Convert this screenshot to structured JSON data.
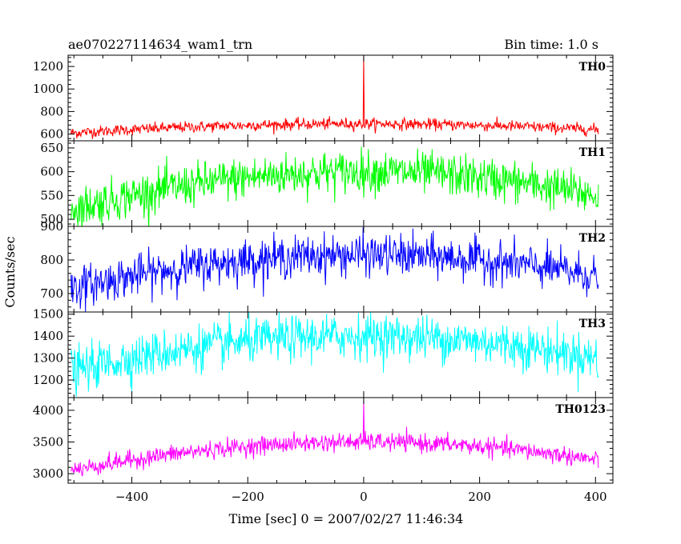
{
  "header": {
    "left_title": "ae070227114634_wam1_trn",
    "right_title": "Bin time: 1.0 s"
  },
  "chart_data": {
    "type": "line",
    "xlabel": "Time [sec] 0 = 2007/02/27 11:46:34",
    "ylabel": "Counts/sec",
    "xlim": [
      -510,
      430
    ],
    "x_ticks": [
      -400,
      -200,
      0,
      200,
      400
    ],
    "x_range": [
      -505,
      405
    ],
    "bin_time_s": 1.0,
    "panels": [
      {
        "name": "TH0",
        "color": "#ff0000",
        "ylim": [
          540,
          1300
        ],
        "y_ticks": [
          600,
          800,
          1000,
          1200
        ],
        "baseline_edge": 610,
        "baseline_peak": 690,
        "noise": 25,
        "spike": {
          "x": 0,
          "y": 1300
        }
      },
      {
        "name": "TH1",
        "color": "#00ff00",
        "ylim": [
          485,
          665
        ],
        "y_ticks": [
          500,
          550,
          600,
          650
        ],
        "baseline_edge": 520,
        "baseline_peak": 600,
        "noise": 22
      },
      {
        "name": "TH2",
        "color": "#0000ff",
        "ylim": [
          645,
          900
        ],
        "y_ticks": [
          700,
          800,
          900
        ],
        "baseline_edge": 715,
        "baseline_peak": 815,
        "noise": 30
      },
      {
        "name": "TH3",
        "color": "#00ffff",
        "ylim": [
          1120,
          1510
        ],
        "y_ticks": [
          1200,
          1300,
          1400,
          1500
        ],
        "baseline_edge": 1240,
        "baseline_peak": 1400,
        "noise": 50
      },
      {
        "name": "TH0123",
        "color": "#ff00ff",
        "ylim": [
          2850,
          4200
        ],
        "y_ticks": [
          3000,
          3500,
          4000
        ],
        "baseline_edge": 3050,
        "baseline_peak": 3500,
        "noise": 70,
        "spike": {
          "x": 0,
          "y": 4150
        }
      }
    ]
  }
}
